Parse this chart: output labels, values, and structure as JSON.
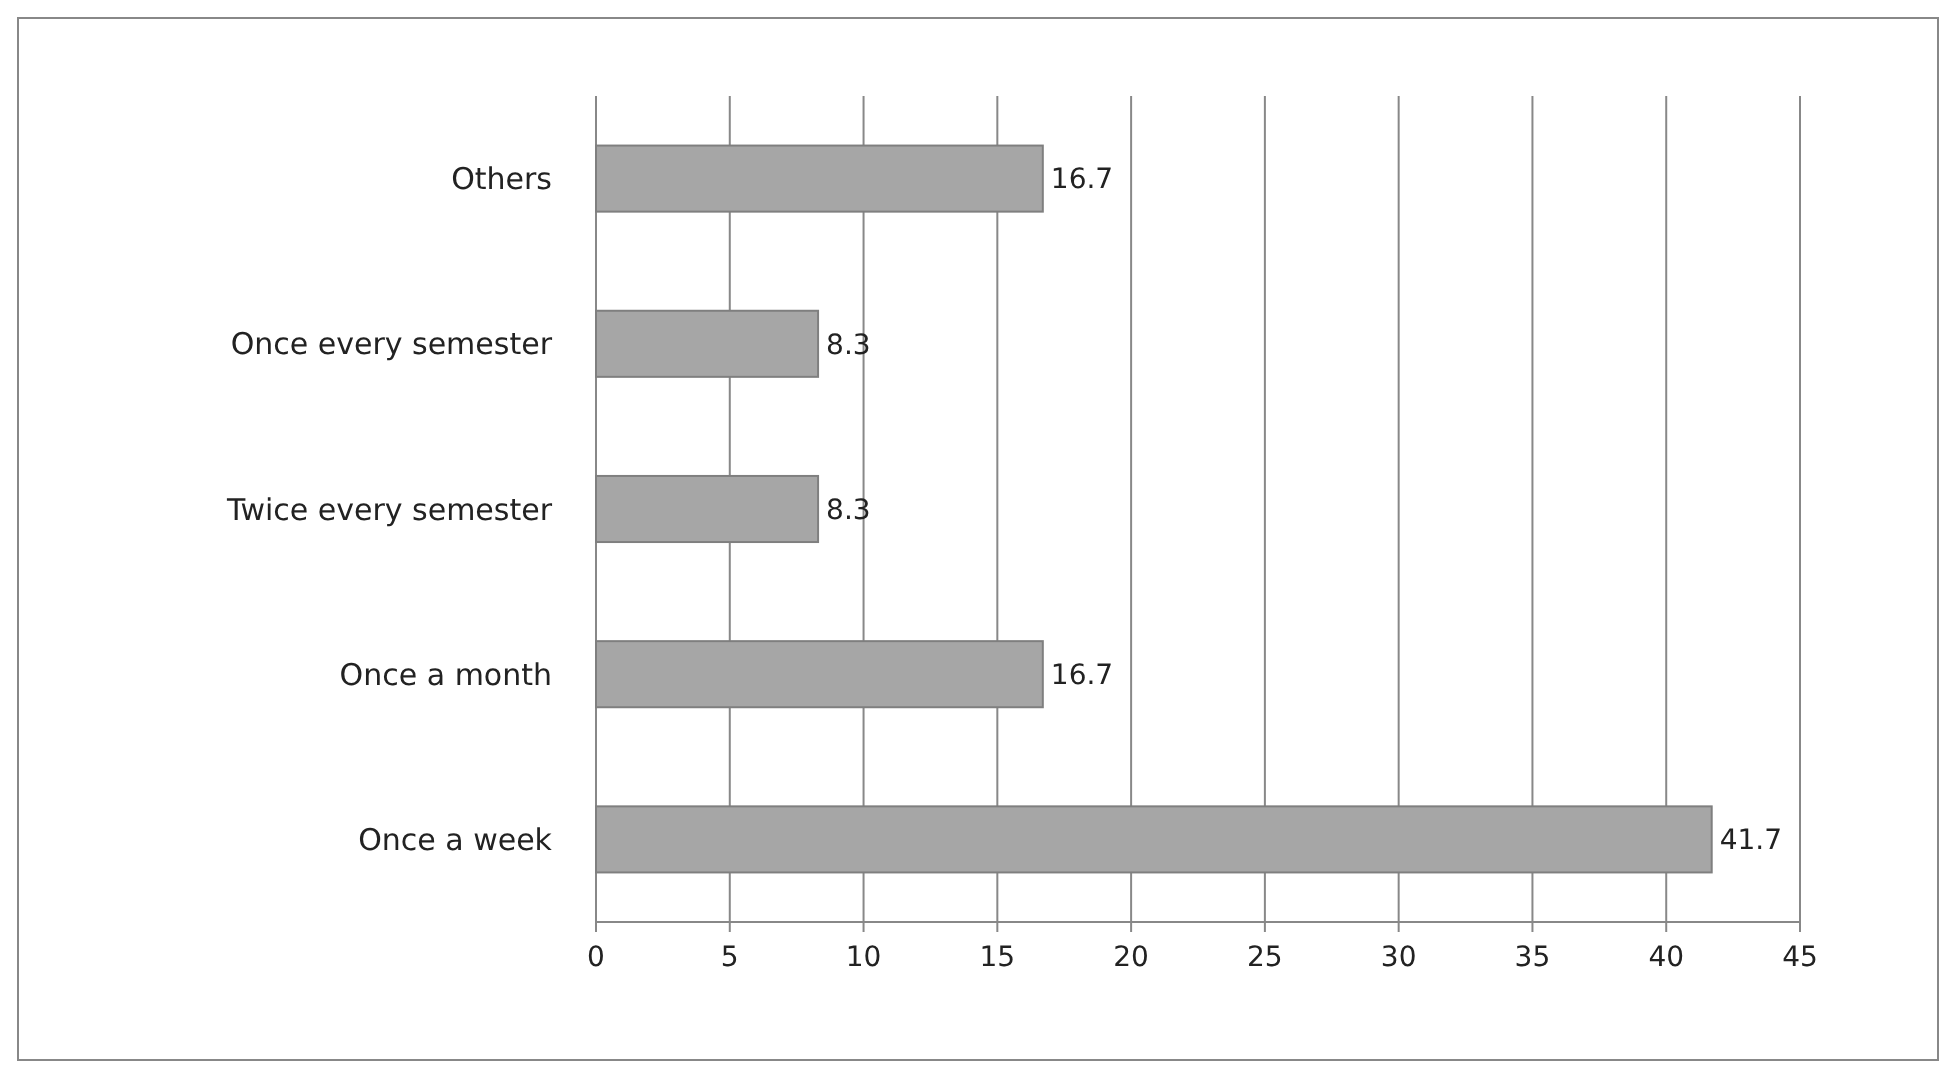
{
  "chart_data": {
    "type": "bar",
    "orientation": "horizontal",
    "categories": [
      "Others",
      "Once every semester",
      "Twice every semester",
      "Once a month",
      "Once a week"
    ],
    "values": [
      16.7,
      8.3,
      8.3,
      16.7,
      41.7
    ],
    "color": "#a6a6a6",
    "xlim": [
      0,
      45
    ],
    "xticks": [
      0,
      5,
      10,
      15,
      20,
      25,
      30,
      35,
      40,
      45
    ],
    "grid": "x",
    "data_labels": true
  }
}
